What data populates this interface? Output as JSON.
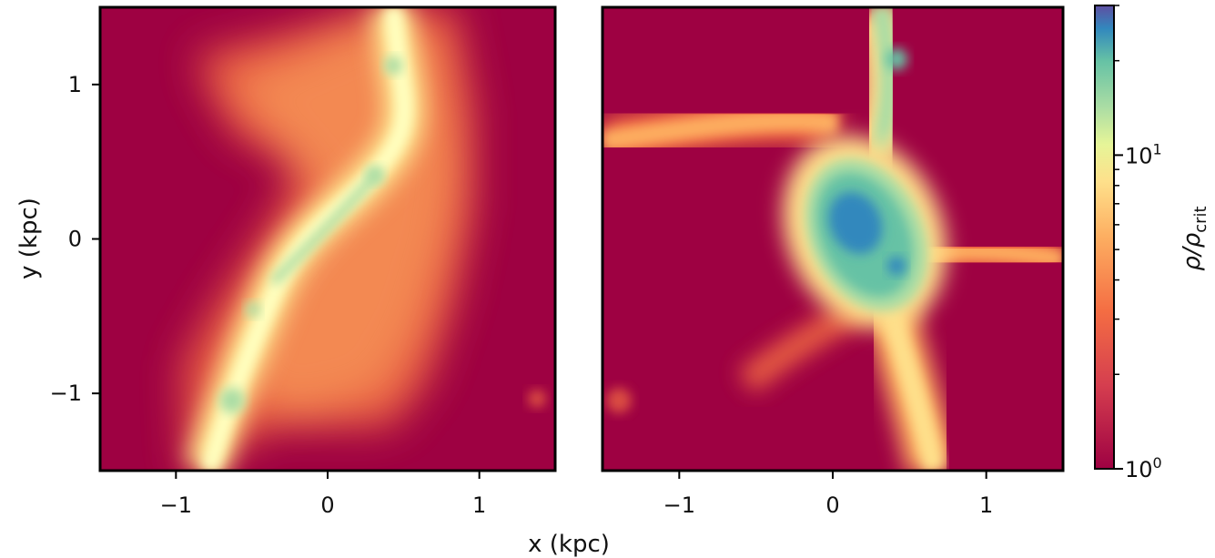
{
  "chart_data": {
    "type": "heatmap",
    "colormap": "Spectral",
    "color_scale": "log",
    "shared_xlabel": "x (kpc)",
    "colorbar": {
      "label_main": "ρ/ρ",
      "label_sub": "crit",
      "range": [
        1,
        30
      ],
      "major_ticks": [
        {
          "value": 1,
          "base": "10",
          "exp": "0"
        },
        {
          "value": 10,
          "base": "10",
          "exp": "1"
        }
      ],
      "minor_ticks": [
        2,
        3,
        4,
        5,
        6,
        7,
        8,
        9,
        20,
        30
      ],
      "colors": {
        "low": "#9e0142",
        "mid_low": "#f46d43",
        "mid": "#fee08b",
        "mid_high": "#abdda4",
        "high": "#3288bd",
        "top": "#5e4fa2"
      }
    },
    "panels": [
      {
        "name": "left",
        "xlim": [
          -1.5,
          1.5
        ],
        "ylim": [
          -1.5,
          1.5
        ],
        "xticks": [
          -1,
          0,
          1
        ],
        "xtick_labels": [
          "−1",
          "0",
          "1"
        ],
        "yticks": [
          -1,
          0,
          1
        ],
        "ytick_labels": [
          "−1",
          "0",
          "1"
        ],
        "ylabel": "y (kpc)",
        "features": [
          {
            "kind": "filament",
            "path": [
              [
                -0.8,
                -1.5
              ],
              [
                -0.6,
                -1.0
              ],
              [
                -0.4,
                -0.5
              ],
              [
                0.0,
                0.0
              ],
              [
                0.3,
                0.5
              ],
              [
                0.4,
                1.0
              ],
              [
                0.4,
                1.5
              ]
            ],
            "level": 8
          },
          {
            "kind": "clump",
            "x": -0.6,
            "y": -1.05,
            "level": 10
          },
          {
            "kind": "clump",
            "x": 0.3,
            "y": 0.45,
            "level": 12
          },
          {
            "kind": "clump",
            "x": -0.5,
            "y": -0.45,
            "level": 9
          }
        ]
      },
      {
        "name": "right",
        "xlim": [
          -1.5,
          1.5
        ],
        "ylim": [
          -1.5,
          1.5
        ],
        "xticks": [
          -1,
          0,
          1
        ],
        "xtick_labels": [
          "−1",
          "0",
          "1"
        ],
        "features": [
          {
            "kind": "filament",
            "path": [
              [
                -1.5,
                0.55
              ],
              [
                -0.7,
                0.65
              ],
              [
                0.0,
                0.7
              ]
            ],
            "level": 4
          },
          {
            "kind": "filament",
            "path": [
              [
                0.3,
                1.5
              ],
              [
                0.35,
                0.9
              ],
              [
                0.2,
                0.5
              ]
            ],
            "level": 7
          },
          {
            "kind": "filament",
            "path": [
              [
                0.4,
                -0.3
              ],
              [
                1.0,
                -0.05
              ],
              [
                1.5,
                -0.1
              ]
            ],
            "level": 4
          },
          {
            "kind": "filament",
            "path": [
              [
                0.4,
                -0.4
              ],
              [
                0.6,
                -1.0
              ],
              [
                0.7,
                -1.5
              ]
            ],
            "level": 5
          },
          {
            "kind": "filament",
            "path": [
              [
                -0.5,
                -0.9
              ],
              [
                -0.1,
                -0.6
              ],
              [
                0.3,
                -0.4
              ]
            ],
            "level": 3
          },
          {
            "kind": "halo",
            "x": 0.2,
            "y": 0.0,
            "level": 20
          },
          {
            "kind": "clump",
            "x": 0.45,
            "y": 1.15,
            "level": 14
          }
        ]
      }
    ]
  }
}
